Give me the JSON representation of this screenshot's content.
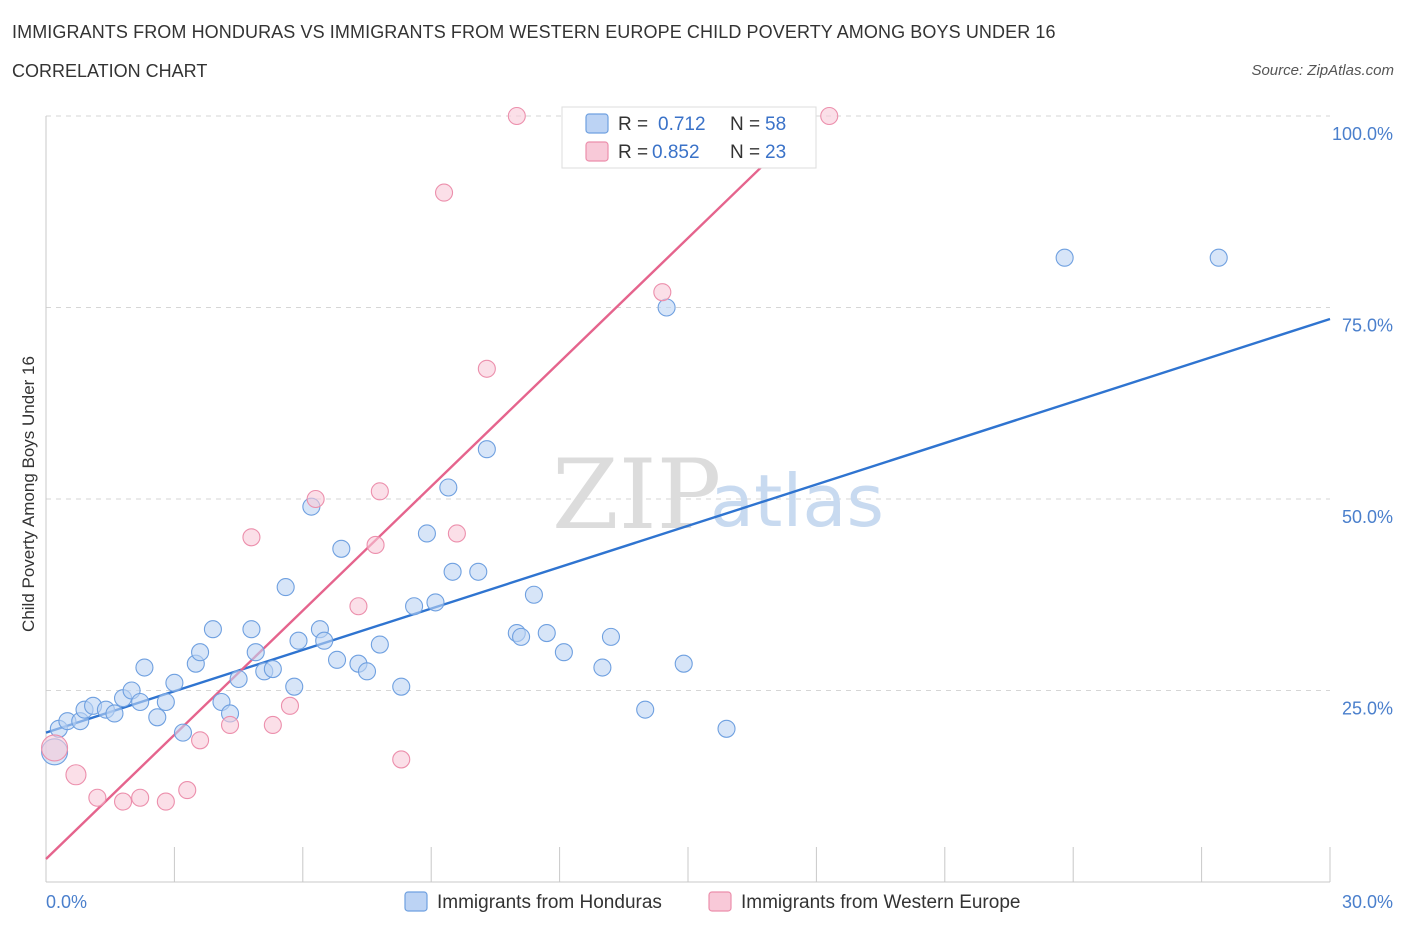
{
  "title": "IMMIGRANTS FROM HONDURAS VS IMMIGRANTS FROM WESTERN EUROPE CHILD POVERTY AMONG BOYS UNDER 16",
  "subtitle": "CORRELATION CHART",
  "source": "Source: ZipAtlas.com",
  "watermark": {
    "zip": "ZIP",
    "atlas": "atlas"
  },
  "chart_data": {
    "type": "scatter",
    "xlabel": "",
    "ylabel": "Child Poverty Among Boys Under 16",
    "xlim": [
      0,
      30
    ],
    "ylim": [
      0,
      100
    ],
    "x_tick_labels": [
      "0.0%",
      "30.0%"
    ],
    "y_ticks": [
      {
        "value": 25,
        "label": "25.0%"
      },
      {
        "value": 50,
        "label": "50.0%"
      },
      {
        "value": 75,
        "label": "75.0%"
      },
      {
        "value": 100,
        "label": "100.0%"
      }
    ],
    "legend": {
      "r_label": "R =",
      "n_label": "N =",
      "entries": [
        {
          "name": "Immigrants from Honduras",
          "r": "0.712",
          "n": "58",
          "color": "#6fa0e0",
          "fill": "#bcd3f4",
          "line": "#2f74d0"
        },
        {
          "name": "Immigrants from Western Europe",
          "r": "0.852",
          "n": "23",
          "color": "#ec8fac",
          "fill": "#f8c9d8",
          "line": "#e5648d"
        }
      ]
    },
    "series": [
      {
        "name": "Immigrants from Honduras",
        "trend": {
          "x0": 0.0,
          "y0": 19.5,
          "x1": 30.0,
          "y1": 73.5
        },
        "points": [
          [
            0.2,
            17.0
          ],
          [
            0.3,
            20.0
          ],
          [
            0.5,
            21.0
          ],
          [
            0.8,
            21.0
          ],
          [
            0.9,
            22.5
          ],
          [
            1.1,
            23.0
          ],
          [
            1.4,
            22.5
          ],
          [
            1.6,
            22.0
          ],
          [
            1.8,
            24.0
          ],
          [
            2.0,
            25.0
          ],
          [
            2.2,
            23.5
          ],
          [
            2.3,
            28.0
          ],
          [
            2.6,
            21.5
          ],
          [
            2.8,
            23.5
          ],
          [
            3.0,
            26.0
          ],
          [
            3.2,
            19.5
          ],
          [
            3.5,
            28.5
          ],
          [
            3.6,
            30.0
          ],
          [
            3.9,
            33.0
          ],
          [
            4.1,
            23.5
          ],
          [
            4.3,
            22.0
          ],
          [
            4.5,
            26.5
          ],
          [
            4.8,
            33.0
          ],
          [
            4.9,
            30.0
          ],
          [
            5.1,
            27.5
          ],
          [
            5.3,
            27.8
          ],
          [
            5.6,
            38.5
          ],
          [
            5.8,
            25.5
          ],
          [
            5.9,
            31.5
          ],
          [
            6.2,
            49.0
          ],
          [
            6.4,
            33.0
          ],
          [
            6.5,
            31.5
          ],
          [
            6.8,
            29.0
          ],
          [
            6.9,
            43.5
          ],
          [
            7.3,
            28.5
          ],
          [
            7.5,
            27.5
          ],
          [
            7.8,
            31.0
          ],
          [
            8.3,
            25.5
          ],
          [
            8.6,
            36.0
          ],
          [
            8.9,
            45.5
          ],
          [
            9.1,
            36.5
          ],
          [
            9.4,
            51.5
          ],
          [
            9.5,
            40.5
          ],
          [
            10.1,
            40.5
          ],
          [
            10.3,
            56.5
          ],
          [
            11.0,
            32.5
          ],
          [
            11.1,
            32.0
          ],
          [
            11.4,
            37.5
          ],
          [
            11.7,
            32.5
          ],
          [
            12.1,
            30.0
          ],
          [
            13.0,
            28.0
          ],
          [
            13.2,
            32.0
          ],
          [
            14.0,
            22.5
          ],
          [
            14.5,
            75.0
          ],
          [
            14.9,
            28.5
          ],
          [
            15.9,
            20.0
          ],
          [
            23.8,
            81.5
          ],
          [
            27.4,
            81.5
          ]
        ]
      },
      {
        "name": "Immigrants from Western Europe",
        "trend": {
          "x0": 0.0,
          "y0": 3.0,
          "x1": 17.3,
          "y1": 96.5
        },
        "points": [
          [
            0.2,
            17.5
          ],
          [
            0.7,
            14.0
          ],
          [
            1.2,
            11.0
          ],
          [
            1.8,
            10.5
          ],
          [
            2.2,
            11.0
          ],
          [
            2.8,
            10.5
          ],
          [
            3.3,
            12.0
          ],
          [
            3.6,
            18.5
          ],
          [
            4.3,
            20.5
          ],
          [
            4.8,
            45.0
          ],
          [
            5.3,
            20.5
          ],
          [
            5.7,
            23.0
          ],
          [
            6.3,
            50.0
          ],
          [
            7.3,
            36.0
          ],
          [
            7.7,
            44.0
          ],
          [
            7.8,
            51.0
          ],
          [
            8.3,
            16.0
          ],
          [
            9.3,
            90.0
          ],
          [
            9.6,
            45.5
          ],
          [
            10.3,
            67.0
          ],
          [
            11.0,
            100.0
          ],
          [
            14.4,
            77.0
          ],
          [
            18.3,
            100.0
          ]
        ]
      }
    ]
  }
}
